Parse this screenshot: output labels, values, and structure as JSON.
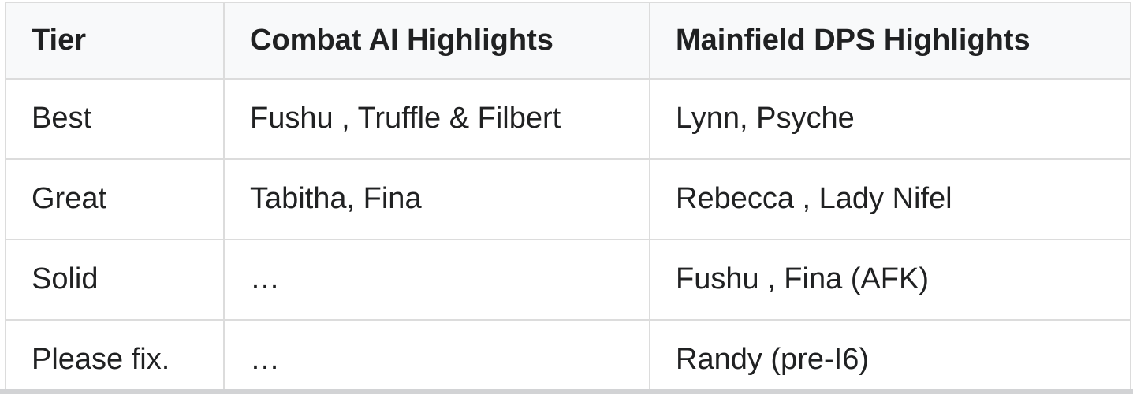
{
  "table": {
    "columns": [
      {
        "label": "Tier"
      },
      {
        "label": "Combat AI Highlights"
      },
      {
        "label": "Mainfield DPS Highlights"
      }
    ],
    "rows": [
      {
        "tier": "Best",
        "combat_ai": "Fushu , Truffle & Filbert",
        "mainfield_dps": "Lynn, Psyche"
      },
      {
        "tier": "Great",
        "combat_ai": "Tabitha, Fina",
        "mainfield_dps": "Rebecca , Lady Nifel"
      },
      {
        "tier": "Solid",
        "combat_ai": "…",
        "mainfield_dps": "Fushu , Fina (AFK)"
      },
      {
        "tier": "Please fix.",
        "combat_ai": "…",
        "mainfield_dps": "Randy (pre-I6)"
      }
    ],
    "colors": {
      "header_bg": "#f8f9fa",
      "row_bg": "#ffffff",
      "border": "#dcdcdc",
      "text": "#202122",
      "bottom_strip": "#d2d3d5"
    }
  }
}
